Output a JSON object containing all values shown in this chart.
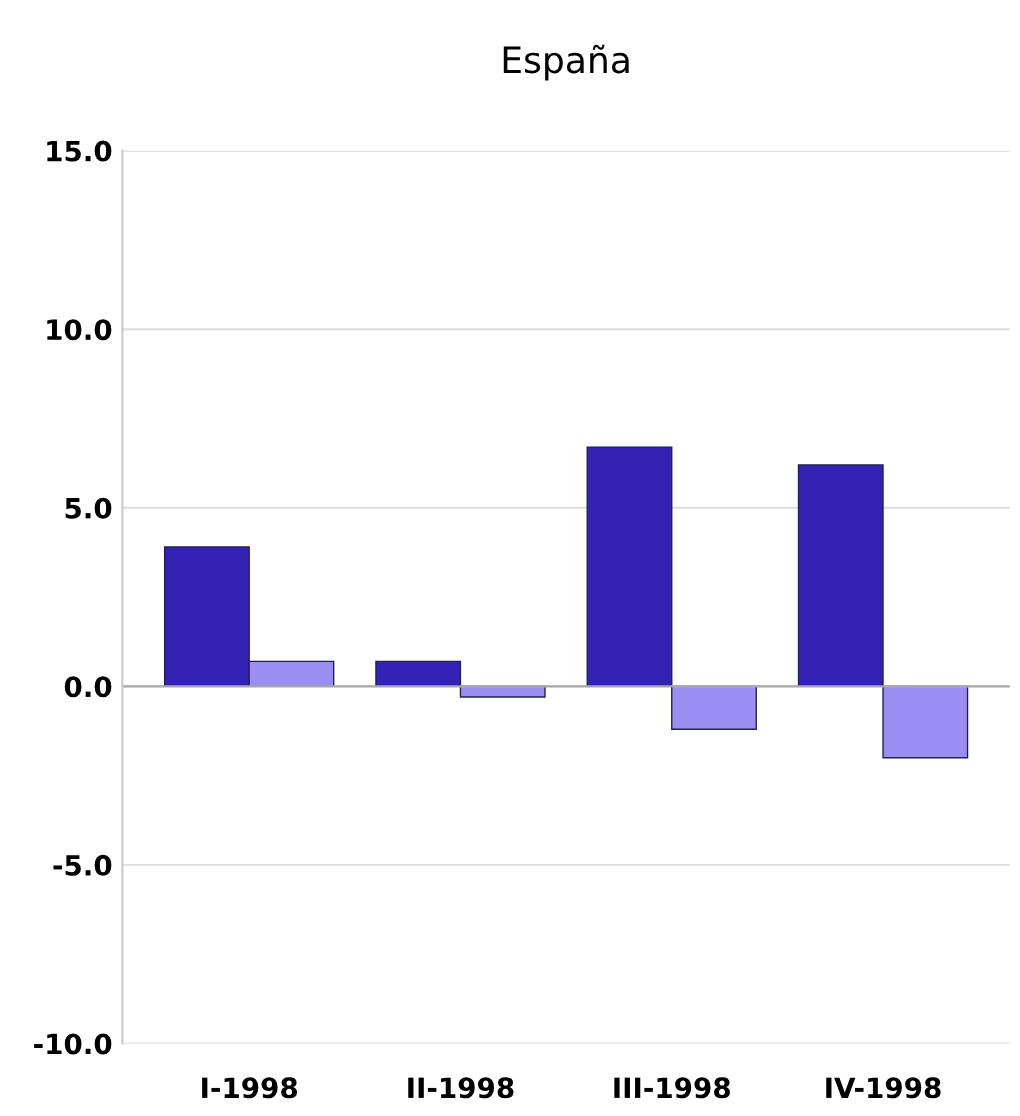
{
  "chart_data": {
    "type": "bar",
    "title": "España",
    "categories": [
      "I-1998",
      "II-1998",
      "III-1998",
      "IV-1998"
    ],
    "series": [
      {
        "color": "#3322b4",
        "values": [
          3.9,
          0.7,
          6.7,
          6.2
        ]
      },
      {
        "color": "#9c8ef0",
        "values": [
          0.7,
          -0.3,
          -1.2,
          -2.0
        ]
      }
    ],
    "ylim": [
      -10,
      15
    ],
    "yticks": [
      {
        "value": -10,
        "label": "-10.0"
      },
      {
        "value": -5,
        "label": "-5.0"
      },
      {
        "value": 0,
        "label": "0.0"
      },
      {
        "value": 5,
        "label": "5.0"
      },
      {
        "value": 10,
        "label": "10.0"
      },
      {
        "value": 15,
        "label": "15.0"
      }
    ],
    "grid": "y"
  }
}
